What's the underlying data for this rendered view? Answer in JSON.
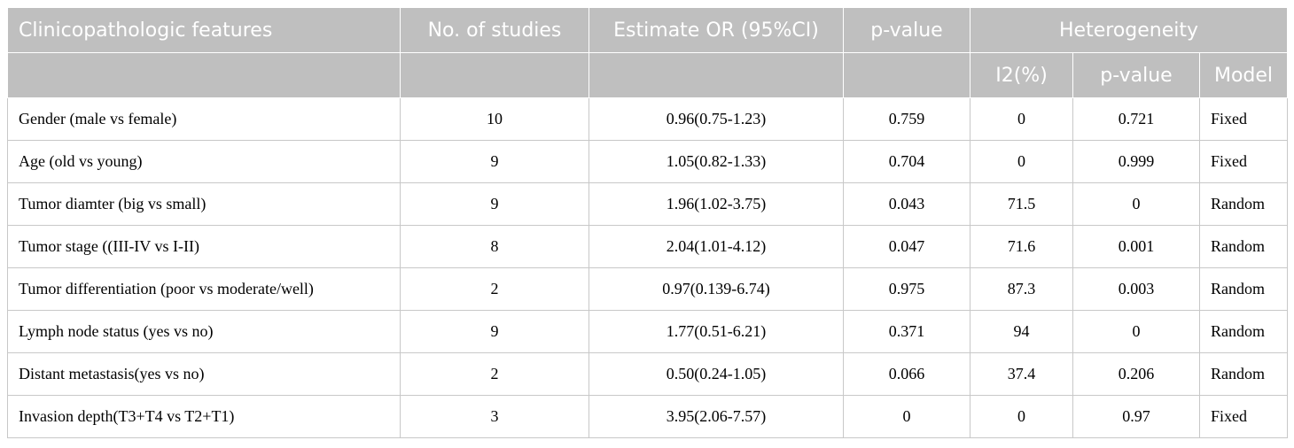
{
  "header": {
    "features": "Clinicopathologic features",
    "studies": "No. of studies",
    "estimate": "Estimate OR (95%CI)",
    "pvalue": "p-value",
    "heterogeneity": "Heterogeneity",
    "i2": "I2(%)",
    "het_pvalue": "p-value",
    "model": "Model"
  },
  "rows": [
    {
      "feature": "Gender (male vs female)",
      "studies": "10",
      "or": "0.96(0.75-1.23)",
      "p": "0.759",
      "i2": "0",
      "hp": "0.721",
      "model": "Fixed"
    },
    {
      "feature": "Age (old vs young)",
      "studies": "9",
      "or": "1.05(0.82-1.33)",
      "p": "0.704",
      "i2": "0",
      "hp": "0.999",
      "model": "Fixed"
    },
    {
      "feature": "Tumor diamter (big vs small)",
      "studies": "9",
      "or": "1.96(1.02-3.75)",
      "p": "0.043",
      "i2": "71.5",
      "hp": "0",
      "model": "Random"
    },
    {
      "feature": "Tumor stage ((III-IV vs I-II)",
      "studies": "8",
      "or": "2.04(1.01-4.12)",
      "p": "0.047",
      "i2": "71.6",
      "hp": "0.001",
      "model": "Random"
    },
    {
      "feature": "Tumor differentiation (poor vs moderate/well)",
      "studies": "2",
      "or": "0.97(0.139-6.74)",
      "p": "0.975",
      "i2": "87.3",
      "hp": "0.003",
      "model": "Random"
    },
    {
      "feature": "Lymph node status (yes vs no)",
      "studies": "9",
      "or": "1.77(0.51-6.21)",
      "p": "0.371",
      "i2": "94",
      "hp": "0",
      "model": "Random"
    },
    {
      "feature": "Distant metastasis(yes vs no)",
      "studies": "2",
      "or": "0.50(0.24-1.05)",
      "p": "0.066",
      "i2": "37.4",
      "hp": "0.206",
      "model": "Random"
    },
    {
      "feature": "Invasion depth(T3+T4 vs T2+T1)",
      "studies": "3",
      "or": "3.95(2.06-7.57)",
      "p": "0",
      "i2": "0",
      "hp": "0.97",
      "model": "Fixed"
    }
  ]
}
